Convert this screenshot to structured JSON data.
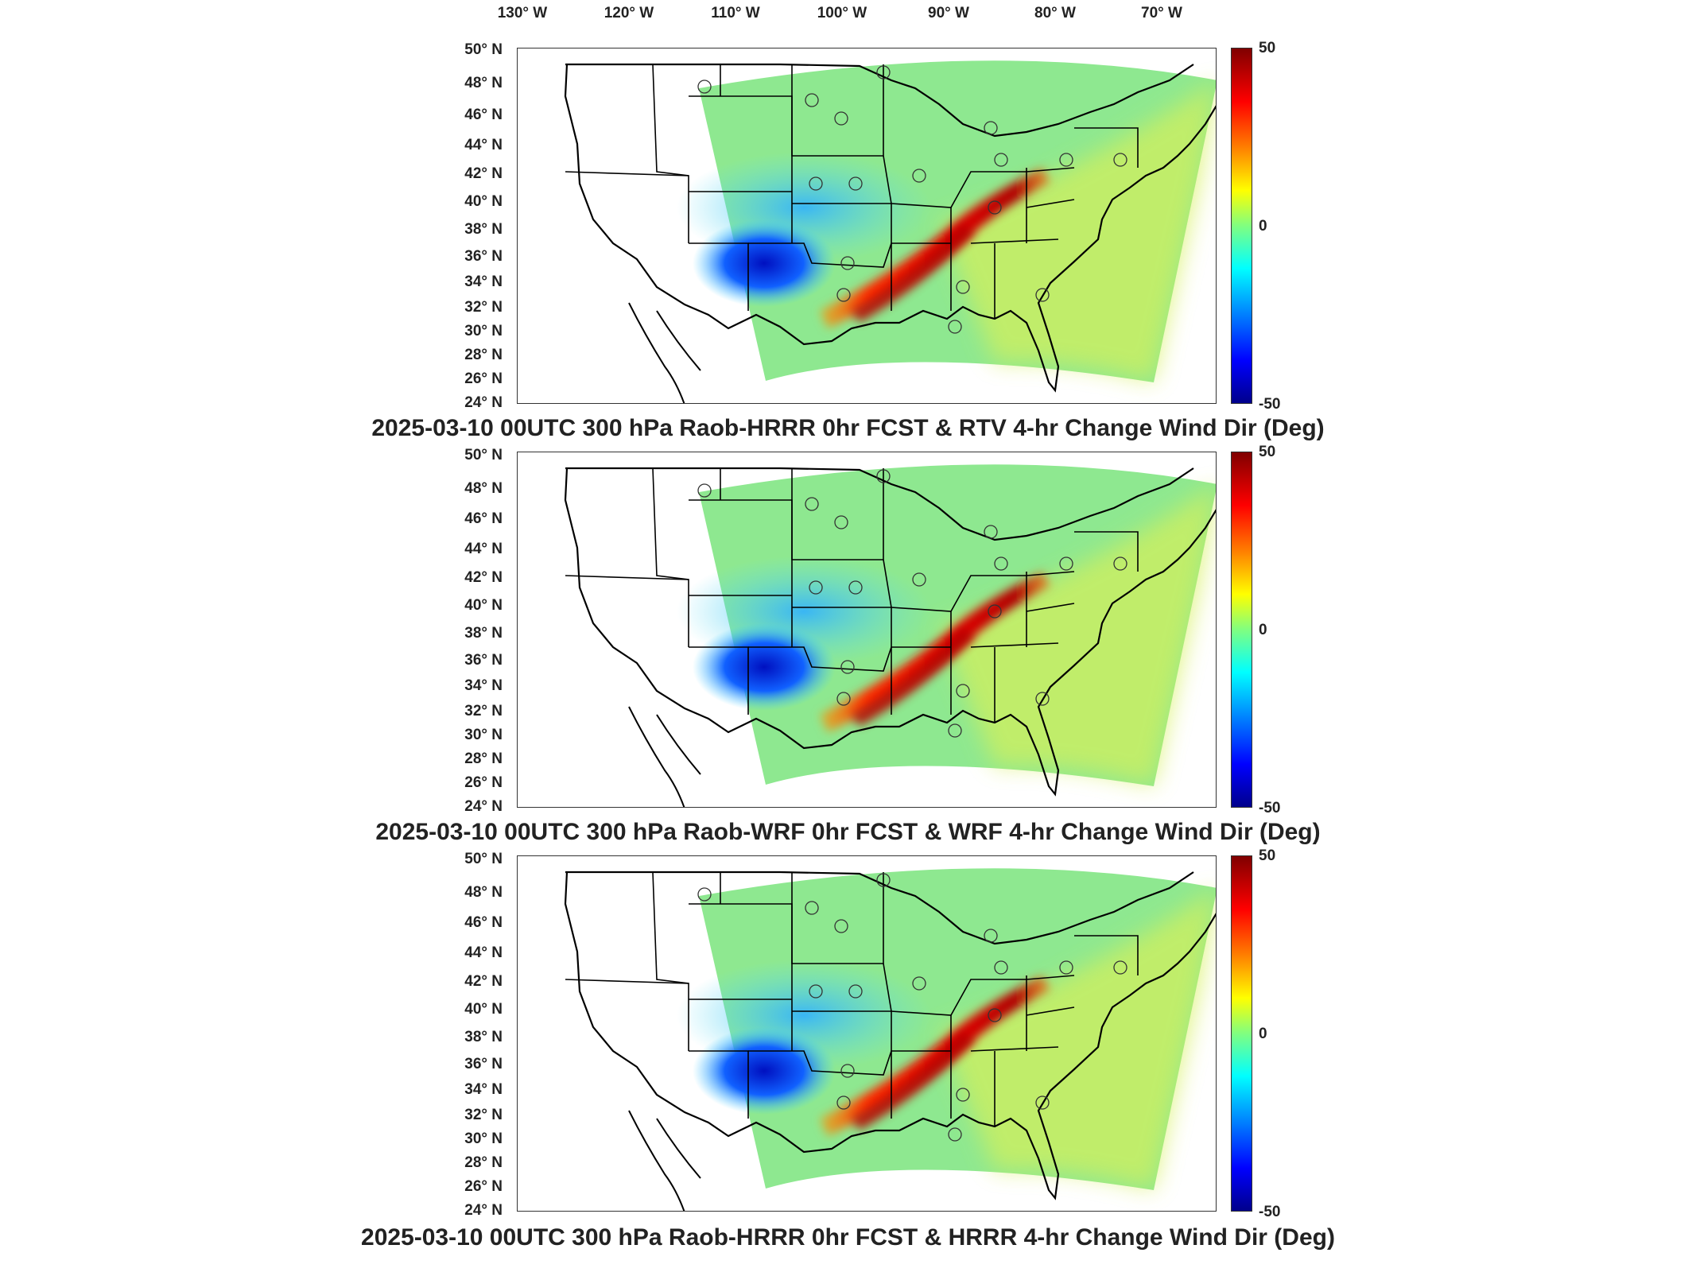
{
  "longitude_labels": [
    "130° W",
    "120° W",
    "110° W",
    "100° W",
    "90° W",
    "80° W",
    "70° W"
  ],
  "latitude_labels": [
    "50° N",
    "48° N",
    "46° N",
    "44° N",
    "42° N",
    "40° N",
    "38° N",
    "36° N",
    "34° N",
    "32° N",
    "30° N",
    "28° N",
    "26° N",
    "24° N"
  ],
  "colorbar": {
    "max": "50",
    "mid": "0",
    "min": "-50"
  },
  "panels": [
    {
      "title": "2025-03-10 00UTC 300 hPa Raob-HRRR 0hr FCST & RTV 4-hr Change Wind Dir (Deg)"
    },
    {
      "title": "2025-03-10 00UTC 300 hPa Raob-WRF 0hr FCST & WRF 4-hr Change Wind Dir (Deg)"
    },
    {
      "title": "2025-03-10 00UTC 300 hPa Raob-HRRR 0hr FCST & HRRR 4-hr Change Wind Dir (Deg)"
    }
  ],
  "colors": {
    "high": "#800000",
    "mid": "#80ff80",
    "low": "#00008b"
  }
}
